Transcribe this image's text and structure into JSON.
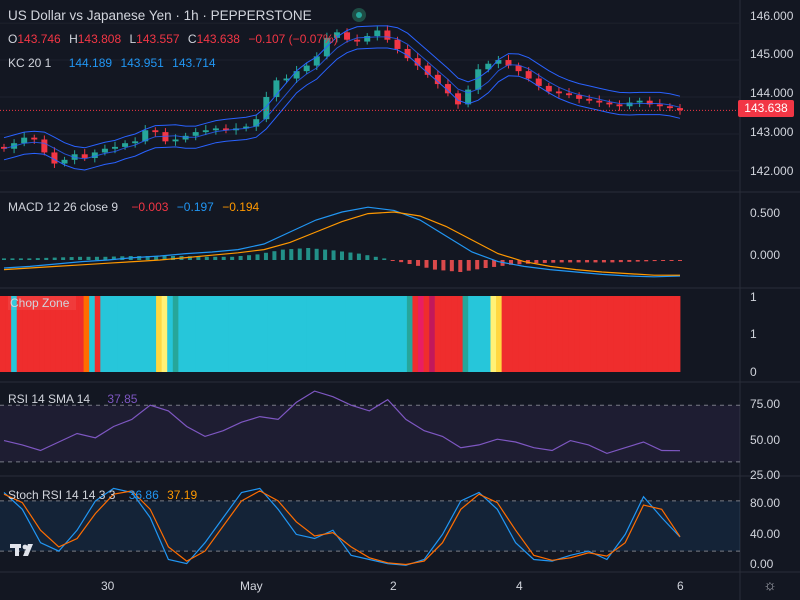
{
  "header": {
    "title": "US Dollar vs Japanese Yen · 1h · PEPPERSTONE",
    "ohlc": {
      "o_label": "O",
      "o": "143.746",
      "h_label": "H",
      "h": "143.808",
      "l_label": "L",
      "l": "143.557",
      "c_label": "C",
      "c": "143.638",
      "chg": "−0.107 (−0.07%)"
    },
    "kc": {
      "label": "KC 20 1",
      "upper": "144.189",
      "mid": "143.951",
      "lower": "143.714"
    }
  },
  "price_axis": {
    "ticks": [
      "146.000",
      "145.000",
      "144.000",
      "143.000",
      "142.000"
    ],
    "last_price": "143.638"
  },
  "macd": {
    "label": "MACD 12 26 close 9",
    "hist": "−0.003",
    "macd": "−0.197",
    "signal": "−0.194",
    "ticks": [
      "0.500",
      "0.000"
    ]
  },
  "chop": {
    "label": "Chop Zone",
    "ticks": [
      "1",
      "1",
      "0"
    ]
  },
  "rsi": {
    "label": "RSI 14 SMA 14",
    "value": "37.85",
    "ticks": [
      "75.00",
      "50.00",
      "25.00"
    ]
  },
  "stoch": {
    "label": "Stoch RSI 14 14 3 3",
    "k": "36.86",
    "d": "37.19",
    "ticks": [
      "80.00",
      "40.00",
      "0.00"
    ]
  },
  "x_axis": {
    "ticks": [
      "30",
      "May",
      "2",
      "4",
      "6"
    ]
  },
  "colors": {
    "up": "#26a69a",
    "down": "#f23645",
    "kc": "#2962ff",
    "macd": "#2196f3",
    "signal": "#ff9800",
    "rsi": "#7e57c2",
    "stoch_k": "#2196f3",
    "stoch_d": "#ff6d00"
  },
  "chart_data": [
    {
      "type": "candlestick",
      "title": "US Dollar vs Japanese Yen · 1h · PEPPERSTONE",
      "ylim": [
        141.7,
        146.3
      ],
      "x_ticks": [
        "30",
        "May",
        "2",
        "4",
        "6"
      ],
      "series": [
        {
          "name": "USDJPY",
          "close_path": [
            142.6,
            142.75,
            142.9,
            142.85,
            142.5,
            142.2,
            142.3,
            142.45,
            142.35,
            142.5,
            142.6,
            142.65,
            142.75,
            142.8,
            143.1,
            143.05,
            142.8,
            142.85,
            142.95,
            143.05,
            143.1,
            143.15,
            143.1,
            143.15,
            143.2,
            143.4,
            144.0,
            144.45,
            144.5,
            144.7,
            144.85,
            145.1,
            145.6,
            145.75,
            145.55,
            145.5,
            145.65,
            145.8,
            145.55,
            145.3,
            145.05,
            144.85,
            144.6,
            144.35,
            144.1,
            143.8,
            144.2,
            144.75,
            144.9,
            145.0,
            144.85,
            144.7,
            144.5,
            144.3,
            144.15,
            144.1,
            144.05,
            143.95,
            143.9,
            143.85,
            143.8,
            143.75,
            143.85,
            143.9,
            143.8,
            143.75,
            143.7,
            143.64
          ]
        }
      ],
      "last": 143.638,
      "kc": {
        "upper": 144.189,
        "mid": 143.951,
        "lower": 143.714
      }
    },
    {
      "type": "bar",
      "title": "MACD 12 26 close 9",
      "ylim": [
        -0.35,
        0.75
      ],
      "series": [
        {
          "name": "MACD",
          "values": [
            -0.1,
            -0.08,
            -0.05,
            -0.02,
            0.0,
            0.03,
            0.05,
            0.08,
            0.1,
            0.13,
            0.2,
            0.35,
            0.5,
            0.6,
            0.66,
            0.62,
            0.5,
            0.3,
            0.1,
            -0.02,
            -0.08,
            -0.12,
            -0.15,
            -0.18,
            -0.2,
            -0.21,
            -0.2
          ]
        },
        {
          "name": "Signal",
          "values": [
            -0.12,
            -0.1,
            -0.08,
            -0.06,
            -0.04,
            -0.02,
            0.0,
            0.03,
            0.06,
            0.09,
            0.13,
            0.22,
            0.35,
            0.48,
            0.58,
            0.6,
            0.55,
            0.42,
            0.25,
            0.08,
            -0.02,
            -0.08,
            -0.12,
            -0.15,
            -0.17,
            -0.19,
            -0.19
          ]
        }
      ],
      "last": {
        "hist": -0.003,
        "macd": -0.197,
        "signal": -0.194
      }
    },
    {
      "type": "heatmap",
      "title": "Chop Zone",
      "ylim": [
        0,
        1
      ]
    },
    {
      "type": "line",
      "title": "RSI 14 SMA 14",
      "ylim": [
        20,
        85
      ],
      "levels": [
        70,
        30
      ],
      "series": [
        {
          "name": "RSI",
          "values": [
            45,
            42,
            38,
            44,
            50,
            47,
            55,
            60,
            70,
            66,
            55,
            48,
            52,
            58,
            62,
            60,
            72,
            80,
            76,
            70,
            66,
            74,
            60,
            52,
            48,
            40,
            42,
            46,
            44,
            40,
            38,
            45,
            42,
            36,
            40,
            44,
            38,
            37.85
          ]
        }
      ],
      "last": 37.85
    },
    {
      "type": "line",
      "title": "Stoch RSI 14 14 3 3",
      "ylim": [
        -5,
        105
      ],
      "levels": [
        80,
        20
      ],
      "series": [
        {
          "name": "K",
          "values": [
            90,
            70,
            30,
            20,
            45,
            80,
            95,
            90,
            60,
            10,
            5,
            30,
            60,
            90,
            95,
            70,
            40,
            35,
            45,
            15,
            10,
            5,
            3,
            10,
            40,
            80,
            90,
            70,
            30,
            10,
            8,
            15,
            20,
            10,
            40,
            85,
            60,
            36.86
          ]
        },
        {
          "name": "D",
          "values": [
            88,
            78,
            45,
            25,
            35,
            65,
            88,
            92,
            70,
            25,
            8,
            20,
            50,
            80,
            92,
            80,
            55,
            38,
            42,
            25,
            12,
            6,
            4,
            8,
            30,
            70,
            88,
            78,
            45,
            15,
            9,
            12,
            18,
            14,
            30,
            75,
            70,
            37.19
          ]
        }
      ],
      "last": {
        "k": 36.86,
        "d": 37.19
      }
    }
  ]
}
